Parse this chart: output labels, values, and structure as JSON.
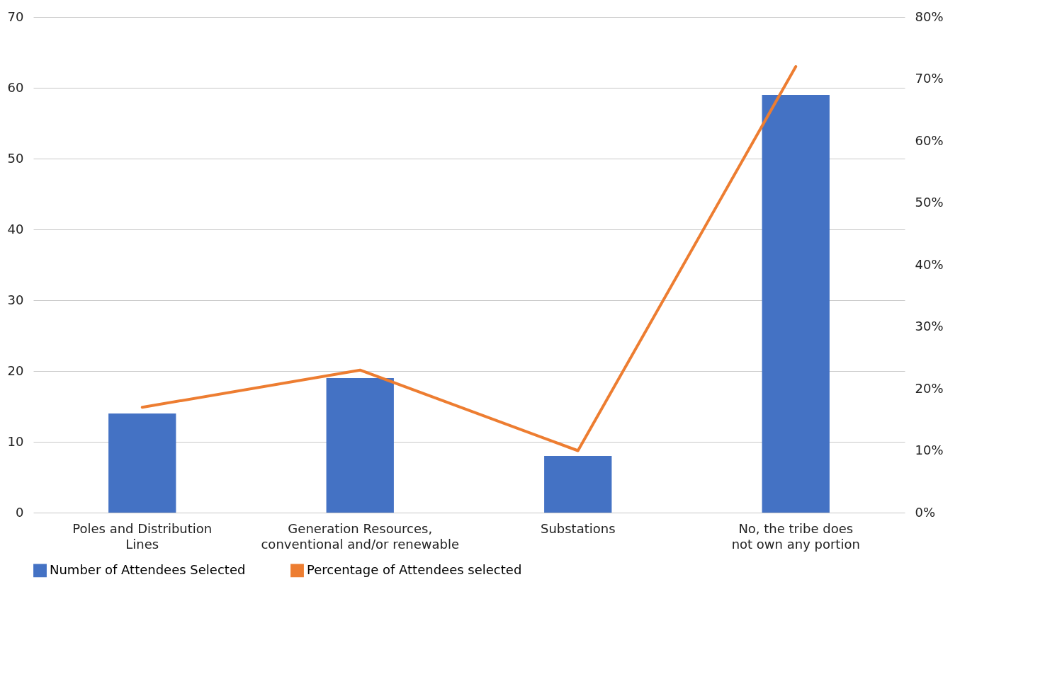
{
  "chart_data": {
    "type": "bar",
    "categories": [
      "Poles and Distribution Lines",
      "Generation Resources, conventional and/or renewable",
      "Substations",
      "No, the tribe does not own any portion"
    ],
    "series": [
      {
        "name": "Number of Attendees Selected",
        "color": "#4472c4",
        "values": [
          14,
          19,
          8,
          59
        ]
      },
      {
        "name": "Percentage of Attendees selected",
        "type": "line",
        "axis": "y2",
        "color": "#ed7d31",
        "values": [
          17,
          23,
          10,
          72
        ]
      }
    ],
    "ylim": [
      0,
      70
    ],
    "yticks": [
      0,
      10,
      20,
      30,
      40,
      50,
      60,
      70
    ],
    "y2lim": [
      0,
      80
    ],
    "y2ticks": [
      {
        "value": 0,
        "label": "0%"
      },
      {
        "value": 10,
        "label": "10%"
      },
      {
        "value": 20,
        "label": "20%"
      },
      {
        "value": 30,
        "label": "30%"
      },
      {
        "value": 40,
        "label": "40%"
      },
      {
        "value": 50,
        "label": "50%"
      },
      {
        "value": 60,
        "label": "60%"
      },
      {
        "value": 70,
        "label": "70%"
      },
      {
        "value": 80,
        "label": "80%"
      }
    ],
    "grid": "y",
    "legend": "bottom",
    "marker": "none",
    "line_style": "solid"
  }
}
